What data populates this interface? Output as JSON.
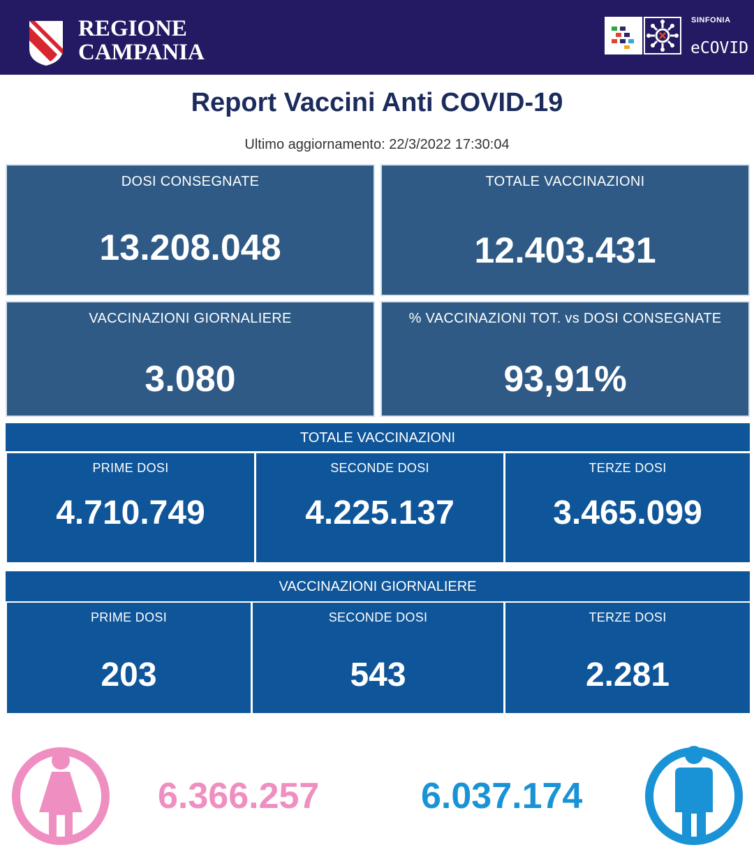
{
  "header": {
    "region_line1": "REGIONE",
    "region_line2": "CAMPANIA",
    "sinfonia_label": "SINFONIA",
    "ecovid_label": "eCOVID",
    "background_color": "#231a63"
  },
  "report": {
    "title": "Report Vaccini Anti COVID-19",
    "last_update": "Ultimo aggiornamento: 22/3/2022  17:30:04"
  },
  "summary": {
    "dosi_consegnate": {
      "label": "DOSI  CONSEGNATE",
      "value": "13.208.048"
    },
    "totale_vaccinazioni": {
      "label": "TOTALE VACCINAZIONI",
      "value": "12.403.431"
    },
    "vaccinazioni_giornaliere": {
      "label": "VACCINAZIONI GIORNALIERE",
      "value": "3.080"
    },
    "percentuale": {
      "label": "% VACCINAZIONI TOT. vs DOSI CONSEGNATE",
      "value": "93,91%"
    }
  },
  "totale_section": {
    "title": "TOTALE VACCINAZIONI",
    "items": [
      {
        "label": "PRIME DOSI",
        "value": "4.710.749"
      },
      {
        "label": "SECONDE DOSI",
        "value": "4.225.137"
      },
      {
        "label": "TERZE DOSI",
        "value": "3.465.099"
      }
    ]
  },
  "giornaliere_section": {
    "title": "VACCINAZIONI GIORNALIERE",
    "items": [
      {
        "label": "PRIME DOSI",
        "value": "203"
      },
      {
        "label": "SECONDE DOSI",
        "value": "543"
      },
      {
        "label": "TERZE DOSI",
        "value": "2.281"
      }
    ]
  },
  "gender": {
    "female": {
      "value": "6.366.257",
      "color": "#ef8fc1",
      "icon": "female-person-icon"
    },
    "male": {
      "value": "6.037.174",
      "color": "#1a93d6",
      "icon": "male-person-icon"
    }
  }
}
